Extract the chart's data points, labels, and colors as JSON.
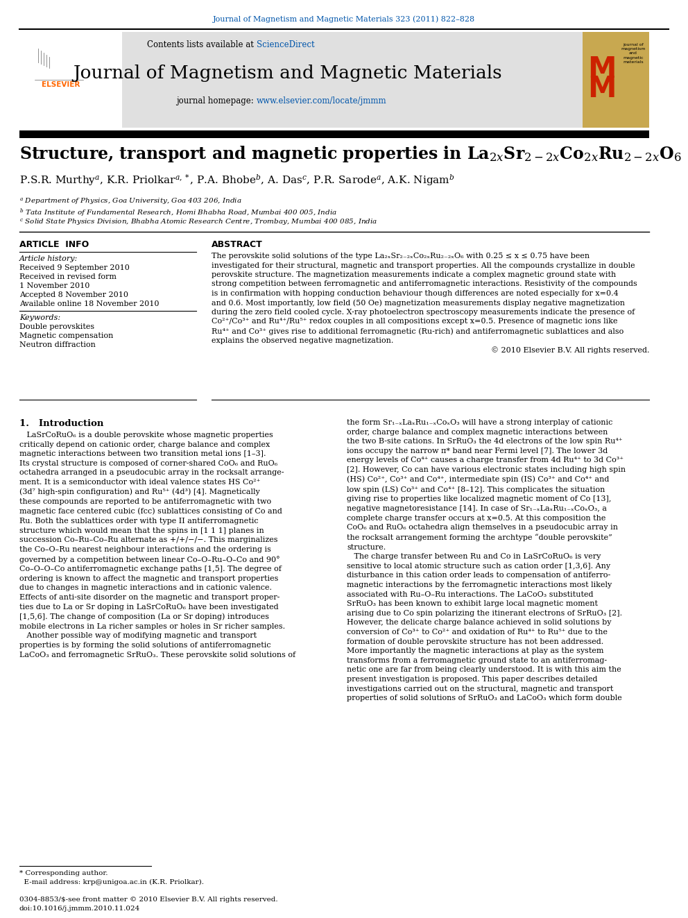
{
  "journal_ref": "Journal of Magnetism and Magnetic Materials 323 (2011) 822–828",
  "header_bg": "#e8e8e8",
  "journal_name": "Journal of Magnetism and Magnetic Materials",
  "journal_homepage": "www.elsevier.com/locate/jmmm",
  "link_color": "#0055aa",
  "elsevier_orange": "#ff6600",
  "bg_color": "#ffffff",
  "text_color": "#000000",
  "gold_color": "#c8a850",
  "red_color": "#cc2200"
}
